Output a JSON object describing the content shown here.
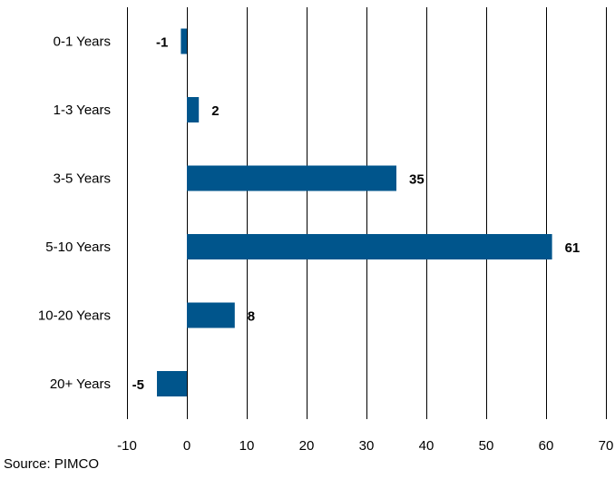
{
  "chart_data": {
    "type": "bar",
    "orientation": "horizontal",
    "categories": [
      "0-1 Years",
      "1-3 Years",
      "3-5 Years",
      "5-10 Years",
      "10-20 Years",
      "20+ Years"
    ],
    "values": [
      -1,
      2,
      35,
      61,
      8,
      -5
    ],
    "data_labels": [
      "-1",
      "2",
      "35",
      "61",
      "8",
      "-5"
    ],
    "xlim": [
      -10,
      70
    ],
    "x_ticks": [
      -10,
      0,
      10,
      20,
      30,
      40,
      50,
      60,
      70
    ],
    "x_tick_labels": [
      "-10",
      "0",
      "10",
      "20",
      "30",
      "40",
      "50",
      "60",
      "70"
    ],
    "grid": "vertical",
    "bar_color": "#00558c"
  },
  "source": "Source: PIMCO"
}
